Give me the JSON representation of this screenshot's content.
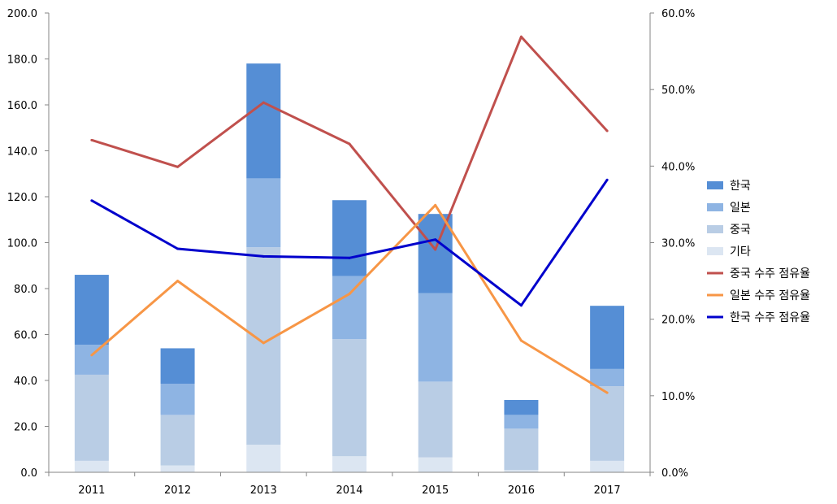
{
  "chart_data": {
    "type": "bar",
    "categories": [
      "2011",
      "2012",
      "2013",
      "2014",
      "2015",
      "2016",
      "2017"
    ],
    "stacked_series": [
      {
        "name": "기타",
        "color": "#dce6f2",
        "values": [
          5.0,
          3.0,
          12.0,
          7.0,
          6.5,
          1.0,
          5.0
        ]
      },
      {
        "name": "중국",
        "color": "#b9cde5",
        "values": [
          37.5,
          22.0,
          86.0,
          51.0,
          33.0,
          18.0,
          32.5
        ]
      },
      {
        "name": "일본",
        "color": "#8eb4e3",
        "values": [
          13.0,
          13.5,
          30.0,
          27.5,
          38.5,
          6.0,
          7.5
        ]
      },
      {
        "name": "한국",
        "color": "#558ed5",
        "values": [
          30.5,
          15.5,
          50.0,
          33.0,
          34.5,
          6.5,
          27.5
        ]
      }
    ],
    "line_series": [
      {
        "name": "중국 수주 점유율",
        "color": "#c0504d",
        "values": [
          43.4,
          39.9,
          48.3,
          42.9,
          29.1,
          56.9,
          44.6
        ]
      },
      {
        "name": "일본 수주 점유율",
        "color": "#f79646",
        "values": [
          15.3,
          25.0,
          16.9,
          23.3,
          34.9,
          17.2,
          10.4
        ]
      },
      {
        "name": "한국 수주 점유율",
        "color": "#0000cc",
        "values": [
          35.5,
          29.2,
          28.2,
          28.0,
          30.4,
          21.8,
          38.2
        ]
      }
    ],
    "y_left": {
      "min": 0,
      "max": 200,
      "step": 20,
      "ticks": [
        "0.0",
        "20.0",
        "40.0",
        "60.0",
        "80.0",
        "100.0",
        "120.0",
        "140.0",
        "160.0",
        "180.0",
        "200.0"
      ]
    },
    "y_right": {
      "min": 0,
      "max": 60,
      "step": 10,
      "ticks": [
        "0.0%",
        "10.0%",
        "20.0%",
        "30.0%",
        "40.0%",
        "50.0%",
        "60.0%"
      ]
    },
    "legend": {
      "position": "right",
      "items": [
        {
          "label": "한국",
          "kind": "bar",
          "color": "#558ed5"
        },
        {
          "label": "일본",
          "kind": "bar",
          "color": "#8eb4e3"
        },
        {
          "label": "중국",
          "kind": "bar",
          "color": "#b9cde5"
        },
        {
          "label": "기타",
          "kind": "bar",
          "color": "#dce6f2"
        },
        {
          "label": "중국 수주 점유율",
          "kind": "line",
          "color": "#c0504d"
        },
        {
          "label": "일본 수주 점유율",
          "kind": "line",
          "color": "#f79646"
        },
        {
          "label": "한국 수주 점유율",
          "kind": "line",
          "color": "#0000cc"
        }
      ]
    },
    "grid": false
  }
}
